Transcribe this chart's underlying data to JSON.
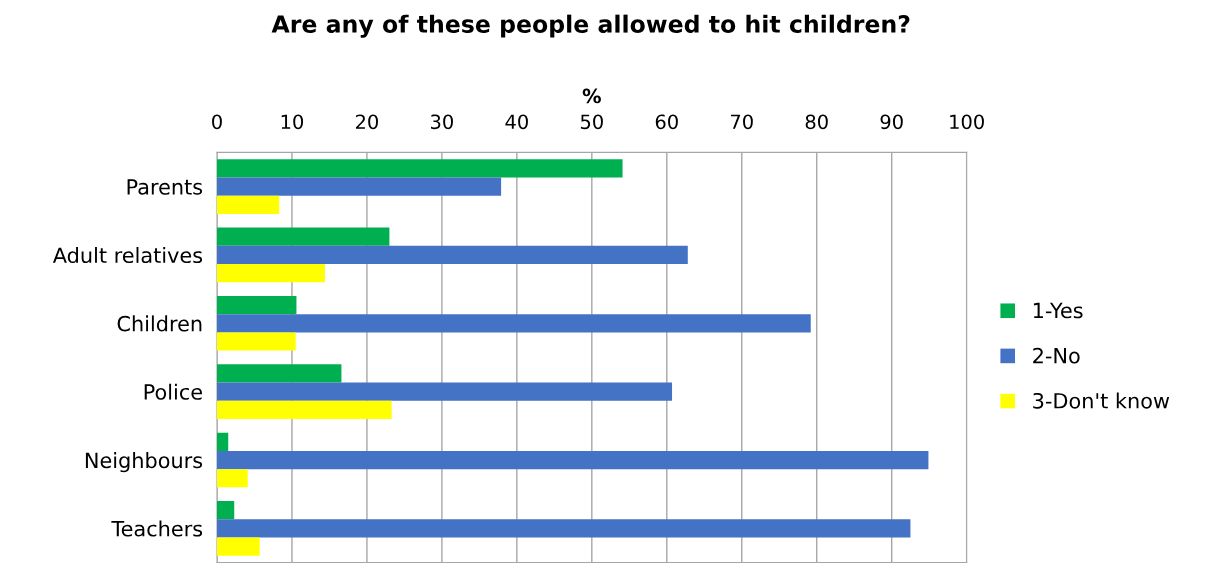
{
  "chart_data": {
    "type": "bar",
    "orientation": "horizontal",
    "title": "Are any of these people allowed to hit children?",
    "xlabel": "%",
    "categories": [
      "Parents",
      "Adult relatives",
      "Children",
      "Police",
      "Neighbours",
      "Teachers"
    ],
    "series": [
      {
        "name": "1-Yes",
        "color": "#00b050",
        "values": [
          54.1,
          23.0,
          10.6,
          16.6,
          1.5,
          2.3
        ]
      },
      {
        "name": "2-No",
        "color": "#4472c4",
        "values": [
          37.9,
          62.8,
          79.2,
          60.7,
          94.9,
          92.5
        ]
      },
      {
        "name": "3-Don't know",
        "color": "#ffff00",
        "values": [
          8.3,
          14.4,
          10.5,
          23.3,
          4.1,
          5.7
        ]
      }
    ],
    "xlim": [
      0,
      100
    ],
    "xticks": [
      0,
      10,
      20,
      30,
      40,
      50,
      60,
      70,
      80,
      90,
      100
    ],
    "grid": "x",
    "legend": "right"
  }
}
